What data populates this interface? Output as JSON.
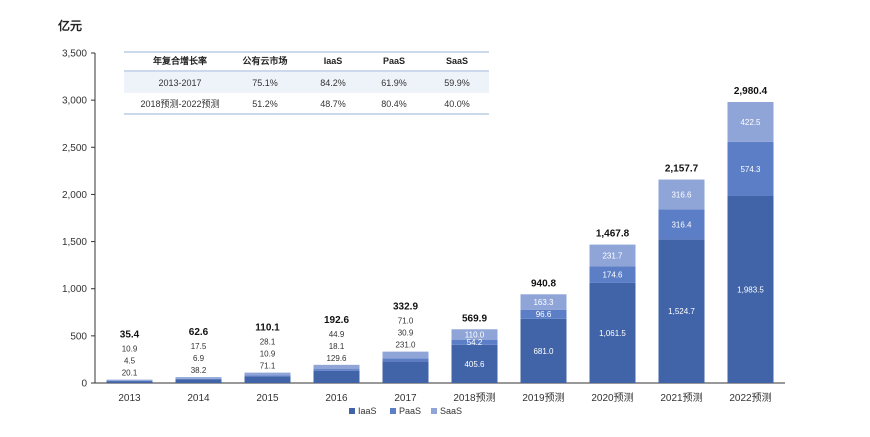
{
  "unit_label": "亿元",
  "colors": {
    "IaaS": "#4164a8",
    "PaaS": "#5b7ec6",
    "SaaS": "#8fa5d8"
  },
  "chart_data": {
    "type": "bar",
    "stacked": true,
    "ylim": [
      0,
      3500
    ],
    "yticks": [
      "0",
      "500",
      "1,000",
      "1,500",
      "2,000",
      "2,500",
      "3,000",
      "3,500"
    ],
    "categories": [
      "2013",
      "2014",
      "2015",
      "2016",
      "2017",
      "2018预测",
      "2019预测",
      "2020预测",
      "2021预测",
      "2022预测"
    ],
    "series": [
      {
        "name": "IaaS",
        "values": [
          20.1,
          38.2,
          71.1,
          129.6,
          231.0,
          405.6,
          681.0,
          1061.5,
          1524.7,
          1983.5
        ],
        "labels": [
          "20.1",
          "38.2",
          "71.1",
          "129.6",
          "231.0",
          "405.6",
          "681.0",
          "1,061.5",
          "1,524.7",
          "1,983.5"
        ]
      },
      {
        "name": "PaaS",
        "values": [
          4.5,
          6.9,
          10.9,
          18.1,
          30.9,
          54.2,
          96.6,
          174.6,
          316.4,
          574.3
        ],
        "labels": [
          "4.5",
          "6.9",
          "10.9",
          "18.1",
          "30.9",
          "54.2",
          "96.6",
          "174.6",
          "316.4",
          "574.3"
        ]
      },
      {
        "name": "SaaS",
        "values": [
          10.9,
          17.5,
          28.1,
          44.9,
          71.0,
          110.0,
          163.3,
          231.7,
          316.6,
          422.5
        ],
        "labels": [
          "10.9",
          "17.5",
          "28.1",
          "44.9",
          "71.0",
          "110.0",
          "163.3",
          "231.7",
          "316.6",
          "422.5"
        ]
      }
    ],
    "totals": [
      35.4,
      62.6,
      110.1,
      192.6,
      332.9,
      569.9,
      940.8,
      1467.8,
      2157.7,
      2980.4
    ],
    "total_labels": [
      "35.4",
      "62.6",
      "110.1",
      "192.6",
      "332.9",
      "569.9",
      "940.8",
      "1,467.8",
      "2,157.7",
      "2,980.4"
    ],
    "legend": [
      "IaaS",
      "PaaS",
      "SaaS"
    ],
    "legend_position": "bottom",
    "table": {
      "headers": [
        "年复合增长率",
        "公有云市场",
        "IaaS",
        "PaaS",
        "SaaS"
      ],
      "rows": [
        [
          "2013-2017",
          "75.1%",
          "84.2%",
          "61.9%",
          "59.9%"
        ],
        [
          "2018预测-2022预测",
          "51.2%",
          "48.7%",
          "80.4%",
          "40.0%"
        ]
      ]
    }
  }
}
